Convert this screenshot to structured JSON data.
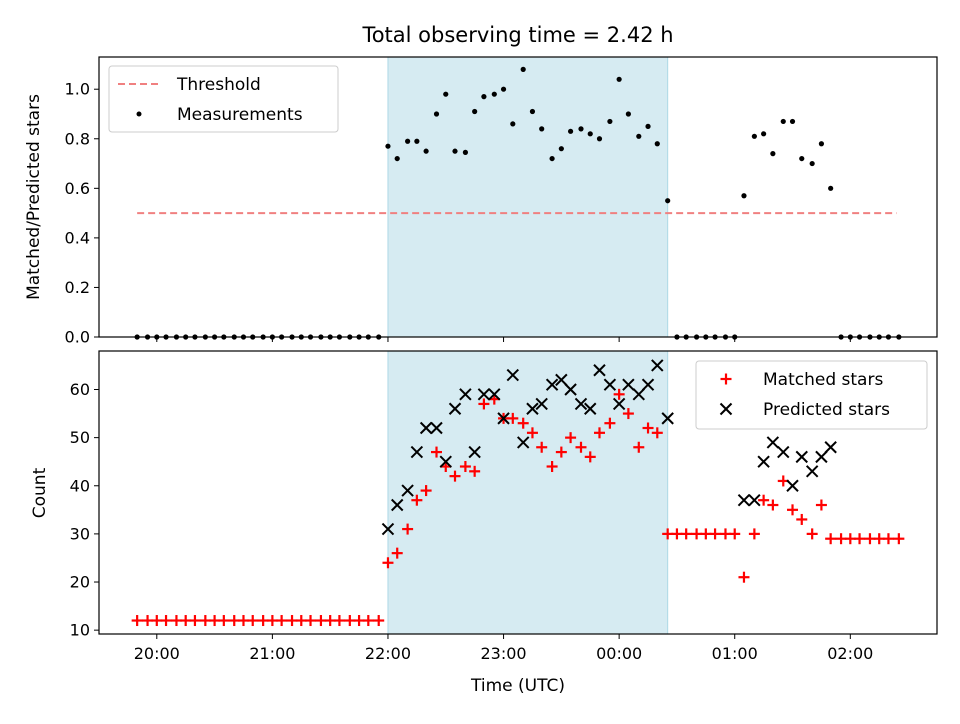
{
  "title": "Total observing time = 2.42 h",
  "colors": {
    "threshold": "#f08080",
    "measurements": "#000000",
    "matched": "#ff0000",
    "predicted": "#000000",
    "shade": "#add8e6"
  },
  "chart_data": [
    {
      "type": "scatter",
      "ylabel": "Matched/Predicted stars",
      "xlabel": "",
      "ylim": [
        0,
        1.13
      ],
      "yticks": [
        "0.0",
        "0.2",
        "0.4",
        "0.6",
        "0.8",
        "1.0"
      ],
      "ytick_values": [
        0,
        0.2,
        0.4,
        0.6,
        0.8,
        1.0
      ],
      "legend_position": "top-left",
      "shaded_x_range": [
        22.0,
        24.42
      ],
      "threshold": {
        "name": "Threshold",
        "value": 0.5,
        "x_range": [
          19.83,
          26.4
        ]
      },
      "series": [
        {
          "name": "Measurements",
          "x": [
            19.83,
            19.92,
            20.0,
            20.08,
            20.17,
            20.25,
            20.33,
            20.42,
            20.5,
            20.58,
            20.67,
            20.75,
            20.83,
            20.92,
            21.0,
            21.08,
            21.17,
            21.25,
            21.33,
            21.42,
            21.5,
            21.58,
            21.67,
            21.75,
            21.83,
            21.92,
            22.0,
            22.08,
            22.17,
            22.25,
            22.33,
            22.42,
            22.5,
            22.58,
            22.67,
            22.75,
            22.83,
            22.92,
            23.0,
            23.08,
            23.17,
            23.25,
            23.33,
            23.42,
            23.5,
            23.58,
            23.67,
            23.75,
            23.83,
            23.92,
            24.0,
            24.08,
            24.17,
            24.25,
            24.33,
            24.42,
            24.5,
            24.58,
            24.67,
            24.75,
            24.83,
            24.92,
            25.0,
            25.08,
            25.17,
            25.25,
            25.33,
            25.42,
            25.5,
            25.58,
            25.67,
            25.75,
            25.83,
            25.92,
            26.0,
            26.08,
            26.17,
            26.25,
            26.33,
            26.42
          ],
          "y": [
            0,
            0,
            0,
            0,
            0,
            0,
            0,
            0,
            0,
            0,
            0,
            0,
            0,
            0,
            0,
            0,
            0,
            0,
            0,
            0,
            0,
            0,
            0,
            0,
            0,
            0,
            0.77,
            0.72,
            0.79,
            0.79,
            0.75,
            0.9,
            0.98,
            0.75,
            0.745,
            0.91,
            0.97,
            0.98,
            1.0,
            0.86,
            1.08,
            0.91,
            0.84,
            0.72,
            0.76,
            0.83,
            0.84,
            0.82,
            0.8,
            0.87,
            1.04,
            0.9,
            0.81,
            0.85,
            0.78,
            0.55,
            0,
            0,
            0,
            0,
            0,
            0,
            0,
            0.57,
            0.81,
            0.82,
            0.74,
            0.87,
            0.87,
            0.72,
            0.7,
            0.78,
            0.6,
            0,
            0,
            0,
            0,
            0,
            0,
            0
          ]
        }
      ]
    },
    {
      "type": "scatter",
      "ylabel": "Count",
      "xlabel": "Time (UTC)",
      "ylim": [
        9.2,
        68
      ],
      "yticks": [
        "10",
        "20",
        "30",
        "40",
        "50",
        "60"
      ],
      "ytick_values": [
        10,
        20,
        30,
        40,
        50,
        60
      ],
      "xticks": [
        "20:00",
        "21:00",
        "22:00",
        "23:00",
        "00:00",
        "01:00",
        "02:00"
      ],
      "xtick_values": [
        20,
        21,
        22,
        23,
        24,
        25,
        26
      ],
      "xlim": [
        19.5,
        26.75
      ],
      "legend_position": "top-right",
      "shaded_x_range": [
        22.0,
        24.42
      ],
      "series": [
        {
          "name": "Matched stars",
          "marker": "plus",
          "x": [
            19.83,
            19.92,
            20.0,
            20.08,
            20.17,
            20.25,
            20.33,
            20.42,
            20.5,
            20.58,
            20.67,
            20.75,
            20.83,
            20.92,
            21.0,
            21.08,
            21.17,
            21.25,
            21.33,
            21.42,
            21.5,
            21.58,
            21.67,
            21.75,
            21.83,
            21.92,
            22.0,
            22.08,
            22.17,
            22.25,
            22.33,
            22.42,
            22.5,
            22.58,
            22.67,
            22.75,
            22.83,
            22.92,
            23.0,
            23.08,
            23.17,
            23.25,
            23.33,
            23.42,
            23.5,
            23.58,
            23.67,
            23.75,
            23.83,
            23.92,
            24.0,
            24.08,
            24.17,
            24.25,
            24.33,
            24.42,
            24.5,
            24.58,
            24.67,
            24.75,
            24.83,
            24.92,
            25.0,
            25.08,
            25.17,
            25.25,
            25.33,
            25.42,
            25.5,
            25.58,
            25.67,
            25.75,
            25.83,
            25.92,
            26.0,
            26.08,
            26.17,
            26.25,
            26.33,
            26.42
          ],
          "y": [
            12,
            12,
            12,
            12,
            12,
            12,
            12,
            12,
            12,
            12,
            12,
            12,
            12,
            12,
            12,
            12,
            12,
            12,
            12,
            12,
            12,
            12,
            12,
            12,
            12,
            12,
            24,
            26,
            31,
            37,
            39,
            47,
            44,
            42,
            44,
            43,
            57,
            58,
            54,
            54,
            53,
            51,
            48,
            44,
            47,
            50,
            48,
            46,
            51,
            53,
            59,
            55,
            48,
            52,
            51,
            30,
            30,
            30,
            30,
            30,
            30,
            30,
            30,
            21,
            30,
            37,
            36,
            41,
            35,
            33,
            30,
            36,
            29,
            29,
            29,
            29,
            29,
            29,
            29,
            29
          ]
        },
        {
          "name": "Predicted stars",
          "marker": "x",
          "x": [
            22.0,
            22.08,
            22.17,
            22.25,
            22.33,
            22.42,
            22.5,
            22.58,
            22.67,
            22.75,
            22.83,
            22.92,
            23.0,
            23.08,
            23.17,
            23.25,
            23.33,
            23.42,
            23.5,
            23.58,
            23.67,
            23.75,
            23.83,
            23.92,
            24.0,
            24.08,
            24.17,
            24.25,
            24.33,
            24.42,
            25.08,
            25.17,
            25.25,
            25.33,
            25.42,
            25.5,
            25.58,
            25.67,
            25.75,
            25.83
          ],
          "y": [
            31,
            36,
            39,
            47,
            52,
            52,
            45,
            56,
            59,
            47,
            59,
            59,
            54,
            63,
            49,
            56,
            57,
            61,
            62,
            60,
            57,
            56,
            64,
            61,
            57,
            61,
            59,
            61,
            65,
            54,
            37,
            37,
            45,
            49,
            47,
            40,
            46,
            43,
            46,
            48
          ]
        }
      ]
    }
  ]
}
